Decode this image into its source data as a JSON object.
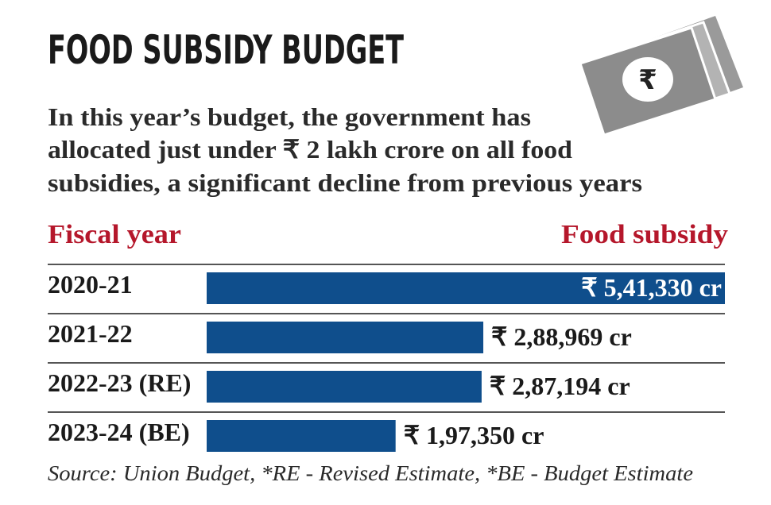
{
  "chart_data": {
    "type": "bar",
    "orientation": "horizontal",
    "title": "FOOD SUBSIDY BUDGET",
    "subtitle": [
      "In this year’s budget, the government has",
      "allocated just under ₹ 2 lakh crore on all food",
      "subsidies, a significant decline from previous years"
    ],
    "category_header": "Fiscal year",
    "value_header": "Food subsidy",
    "categories": [
      "2020-21",
      "2021-22",
      "2022-23 (RE)",
      "2023-24 (BE)"
    ],
    "values": [
      541330,
      288969,
      287194,
      197350
    ],
    "value_labels": [
      "₹ 5,41,330 cr",
      "₹ 2,88,969 cr",
      "₹ 2,87,194 cr",
      "₹ 1,97,350 cr"
    ],
    "color": "#0f4e8c",
    "source": "Source: Union Budget, *RE - Revised Estimate, *BE - Budget Estimate"
  }
}
